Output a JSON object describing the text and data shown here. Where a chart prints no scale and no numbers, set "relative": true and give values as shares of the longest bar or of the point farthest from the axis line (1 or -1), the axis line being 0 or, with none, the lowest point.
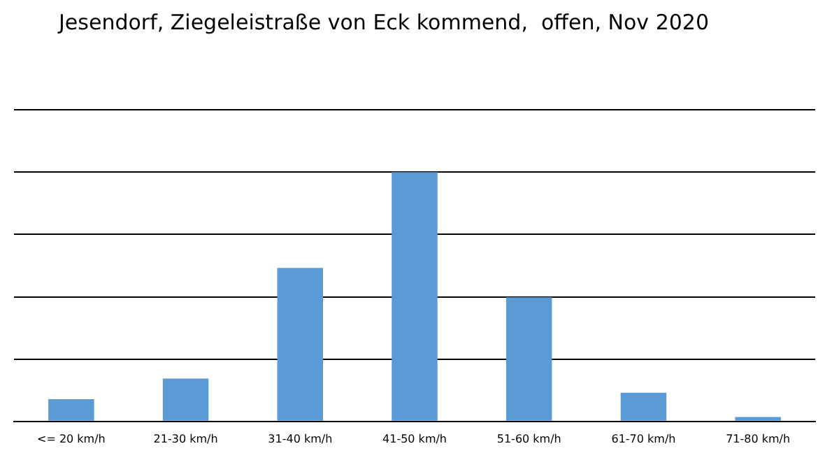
{
  "chart_data": {
    "type": "bar",
    "title": "Jesendorf, Ziegeleistraße von Eck kommend,  offen, Nov 2020",
    "categories": [
      "<= 20 km/h",
      "21-30 km/h",
      "31-40 km/h",
      "41-50 km/h",
      "51-60 km/h",
      "61-70 km/h",
      "71-80 km/h"
    ],
    "values": [
      0.089,
      0.172,
      0.616,
      1,
      0.498,
      0.115,
      0.018
    ],
    "color": "#5b9bd5",
    "relative": true,
    "grid": "y"
  }
}
